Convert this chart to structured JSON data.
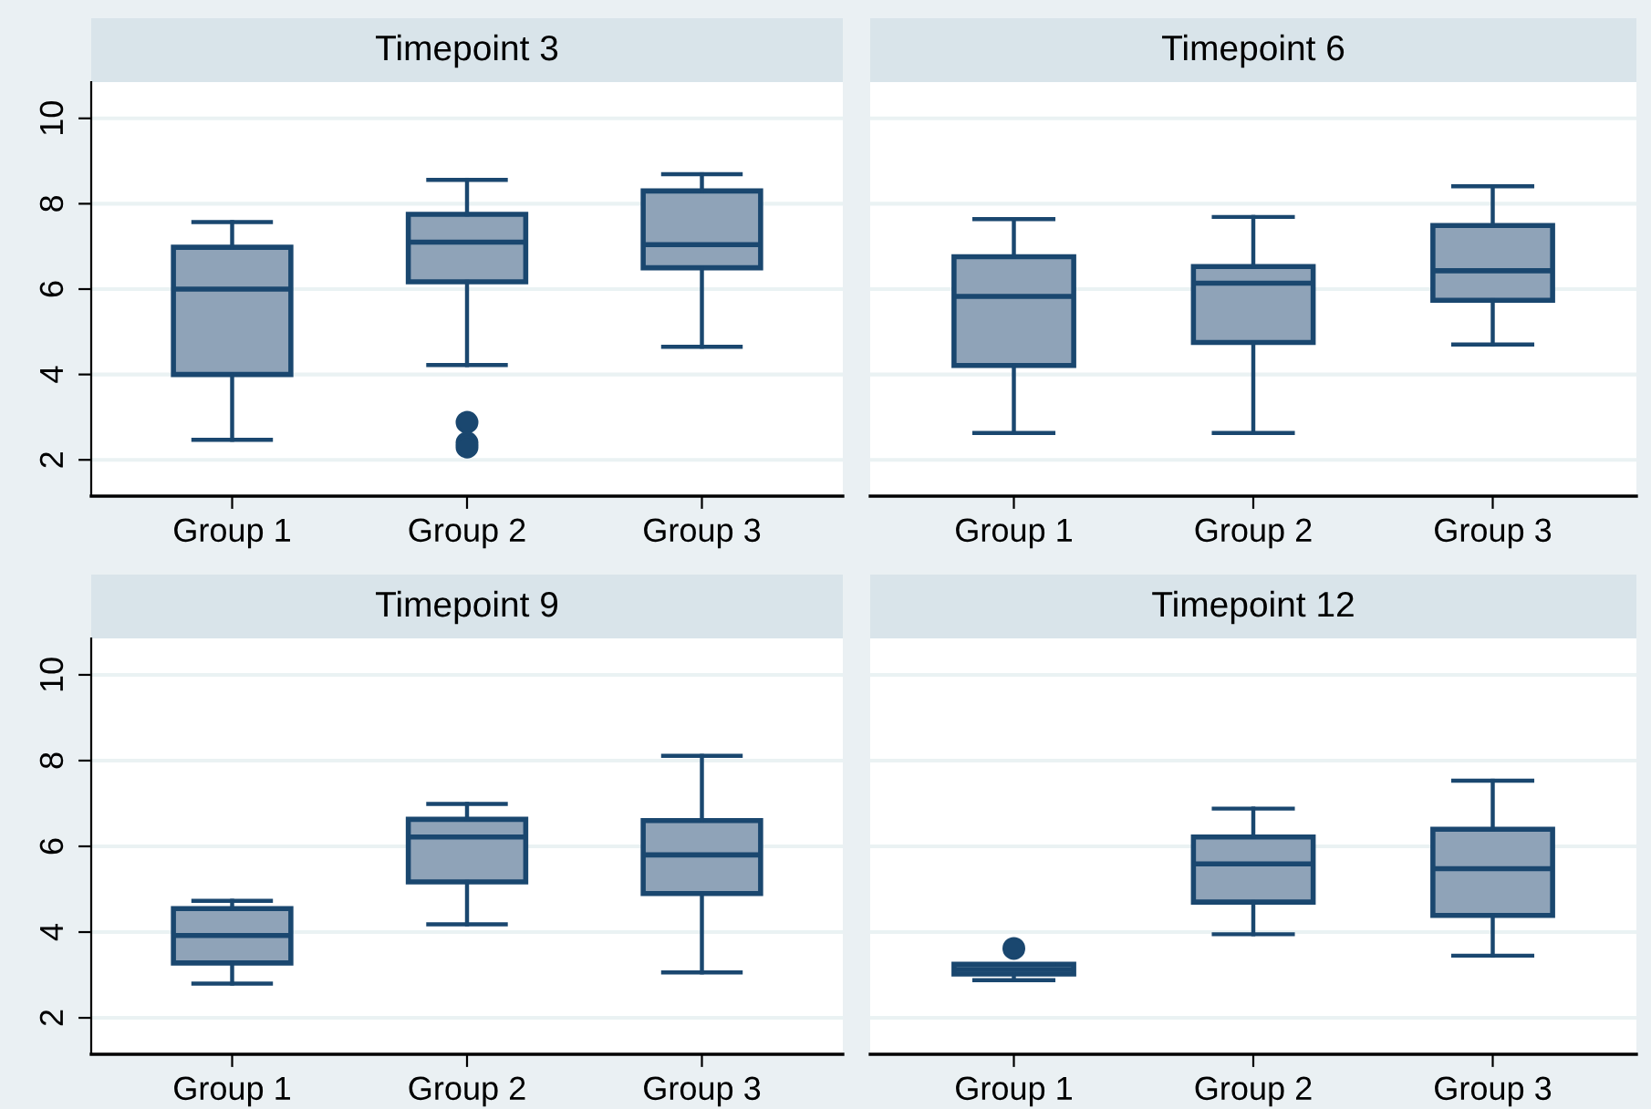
{
  "chart_data": [
    {
      "type": "box",
      "title": "Timepoint 3",
      "categories": [
        "Group 1",
        "Group 2",
        "Group 3"
      ],
      "ylim": [
        1.15,
        10.85
      ],
      "yticks": [
        2,
        4,
        6,
        8,
        10
      ],
      "grid": "y",
      "series": [
        {
          "color": "#8fa3b8",
          "boxes": [
            {
              "low": 2.47,
              "q1": 4.0,
              "median": 6.0,
              "q3": 6.98,
              "high": 7.57
            },
            {
              "low": 4.22,
              "q1": 6.17,
              "median": 7.1,
              "q3": 7.75,
              "high": 8.56,
              "outliers": [
                2.88,
                2.4,
                2.3
              ]
            },
            {
              "low": 4.65,
              "q1": 6.5,
              "median": 7.04,
              "q3": 8.3,
              "high": 8.69
            }
          ]
        }
      ]
    },
    {
      "type": "box",
      "title": "Timepoint 6",
      "categories": [
        "Group 1",
        "Group 2",
        "Group 3"
      ],
      "ylim": [
        1.15,
        10.85
      ],
      "yticks": [
        2,
        4,
        6,
        8,
        10
      ],
      "grid": "y",
      "tick_labels": "x",
      "series": [
        {
          "color": "#8fa3b8",
          "boxes": [
            {
              "low": 2.63,
              "q1": 4.21,
              "median": 5.83,
              "q3": 6.76,
              "high": 7.64
            },
            {
              "low": 2.63,
              "q1": 4.75,
              "median": 6.14,
              "q3": 6.53,
              "high": 7.69
            },
            {
              "low": 4.7,
              "q1": 5.74,
              "median": 6.43,
              "q3": 7.49,
              "high": 8.41
            }
          ]
        }
      ]
    },
    {
      "type": "box",
      "title": "Timepoint 9",
      "categories": [
        "Group 1",
        "Group 2",
        "Group 3"
      ],
      "ylim": [
        1.15,
        10.85
      ],
      "yticks": [
        2,
        4,
        6,
        8,
        10
      ],
      "grid": "y",
      "series": [
        {
          "color": "#8fa3b8",
          "boxes": [
            {
              "low": 2.8,
              "q1": 3.28,
              "median": 3.92,
              "q3": 4.55,
              "high": 4.73
            },
            {
              "low": 4.18,
              "q1": 5.17,
              "median": 6.22,
              "q3": 6.63,
              "high": 6.99
            },
            {
              "low": 3.06,
              "q1": 4.9,
              "median": 5.8,
              "q3": 6.6,
              "high": 8.11
            }
          ]
        }
      ]
    },
    {
      "type": "box",
      "title": "Timepoint 12",
      "categories": [
        "Group 1",
        "Group 2",
        "Group 3"
      ],
      "ylim": [
        1.15,
        10.85
      ],
      "yticks": [
        2,
        4,
        6,
        8,
        10
      ],
      "grid": "y",
      "tick_labels": "x",
      "series": [
        {
          "color": "#8fa3b8",
          "boxes": [
            {
              "low": 2.88,
              "q1": 3.02,
              "median": 3.13,
              "q3": 3.25,
              "high": 3.25,
              "outliers": [
                3.62
              ]
            },
            {
              "low": 3.95,
              "q1": 4.7,
              "median": 5.59,
              "q3": 6.22,
              "high": 6.88
            },
            {
              "low": 3.45,
              "q1": 4.39,
              "median": 5.48,
              "q3": 6.4,
              "high": 7.53
            }
          ]
        }
      ]
    }
  ]
}
